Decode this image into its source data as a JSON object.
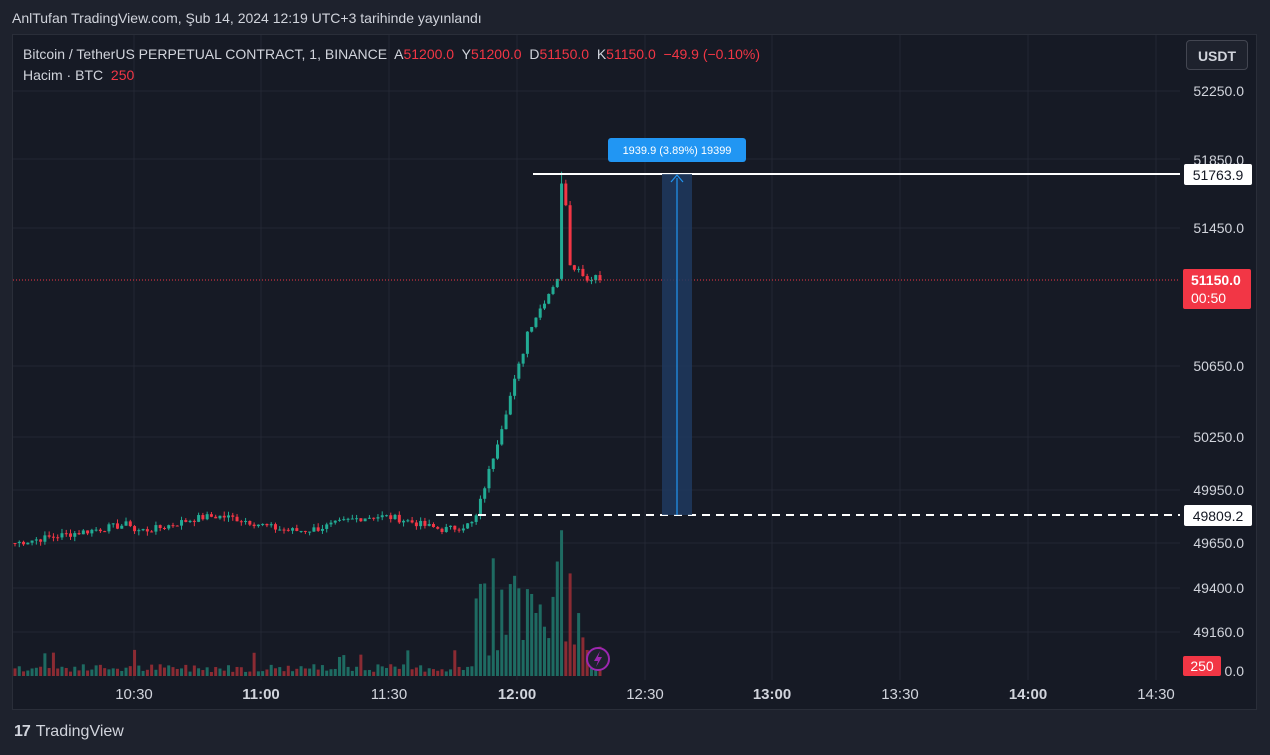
{
  "header": {
    "published": "AnlTufan TradingView.com, Şub 14, 2024 12:19 UTC+3 tarihinde yayınlandı"
  },
  "legend": {
    "symbol": "Bitcoin / TetherUS PERPETUAL CONTRACT, 1, BINANCE",
    "a_label": "A",
    "a_value": "51200.0",
    "y_label": "Y",
    "y_value": "51200.0",
    "d_label": "D",
    "d_value": "51150.0",
    "k_label": "K",
    "k_value": "51150.0",
    "change": "−49.9 (−0.10%)",
    "volume_label": "Hacim · BTC",
    "volume_value": "250"
  },
  "currency_button": "USDT",
  "footer": {
    "brand": "TradingView",
    "logo": "17"
  },
  "colors": {
    "up": "#22ab94",
    "down": "#f23645",
    "vol_up": "#1e6b62",
    "vol_down": "#8b2b33",
    "accent": "#2962ff",
    "measure_fill": "#1f3a5f",
    "measure_line": "#2196f3"
  },
  "icons": {
    "lightning": "lightning-icon"
  },
  "chart_data": {
    "type": "candlestick",
    "interval": "1m",
    "price_axis": {
      "ticks": [
        "52250.0",
        "51850.0",
        "51450.0",
        "50650.0",
        "50250.0",
        "49950.0",
        "49650.0",
        "49400.0",
        "49160.0",
        "0.0"
      ]
    },
    "time_axis": {
      "ticks": [
        "10:30",
        "11:00",
        "11:30",
        "12:00",
        "12:30",
        "13:00",
        "13:30",
        "14:00",
        "14:30"
      ]
    },
    "last_price": {
      "label": "51150.0",
      "countdown": "00:50"
    },
    "volume_badge": "250",
    "horizontal_lines": [
      {
        "label": "51763.9",
        "style": "solid"
      },
      {
        "label": "49809.2",
        "style": "dashed"
      }
    ],
    "measure": {
      "label": "1939.9 (3.89%) 19399"
    },
    "summary": {
      "start_approx": 49650,
      "range_before_move": [
        49650,
        49900
      ],
      "breakout_time": "11:55",
      "high": 51763.9,
      "last": 51150.0
    }
  }
}
